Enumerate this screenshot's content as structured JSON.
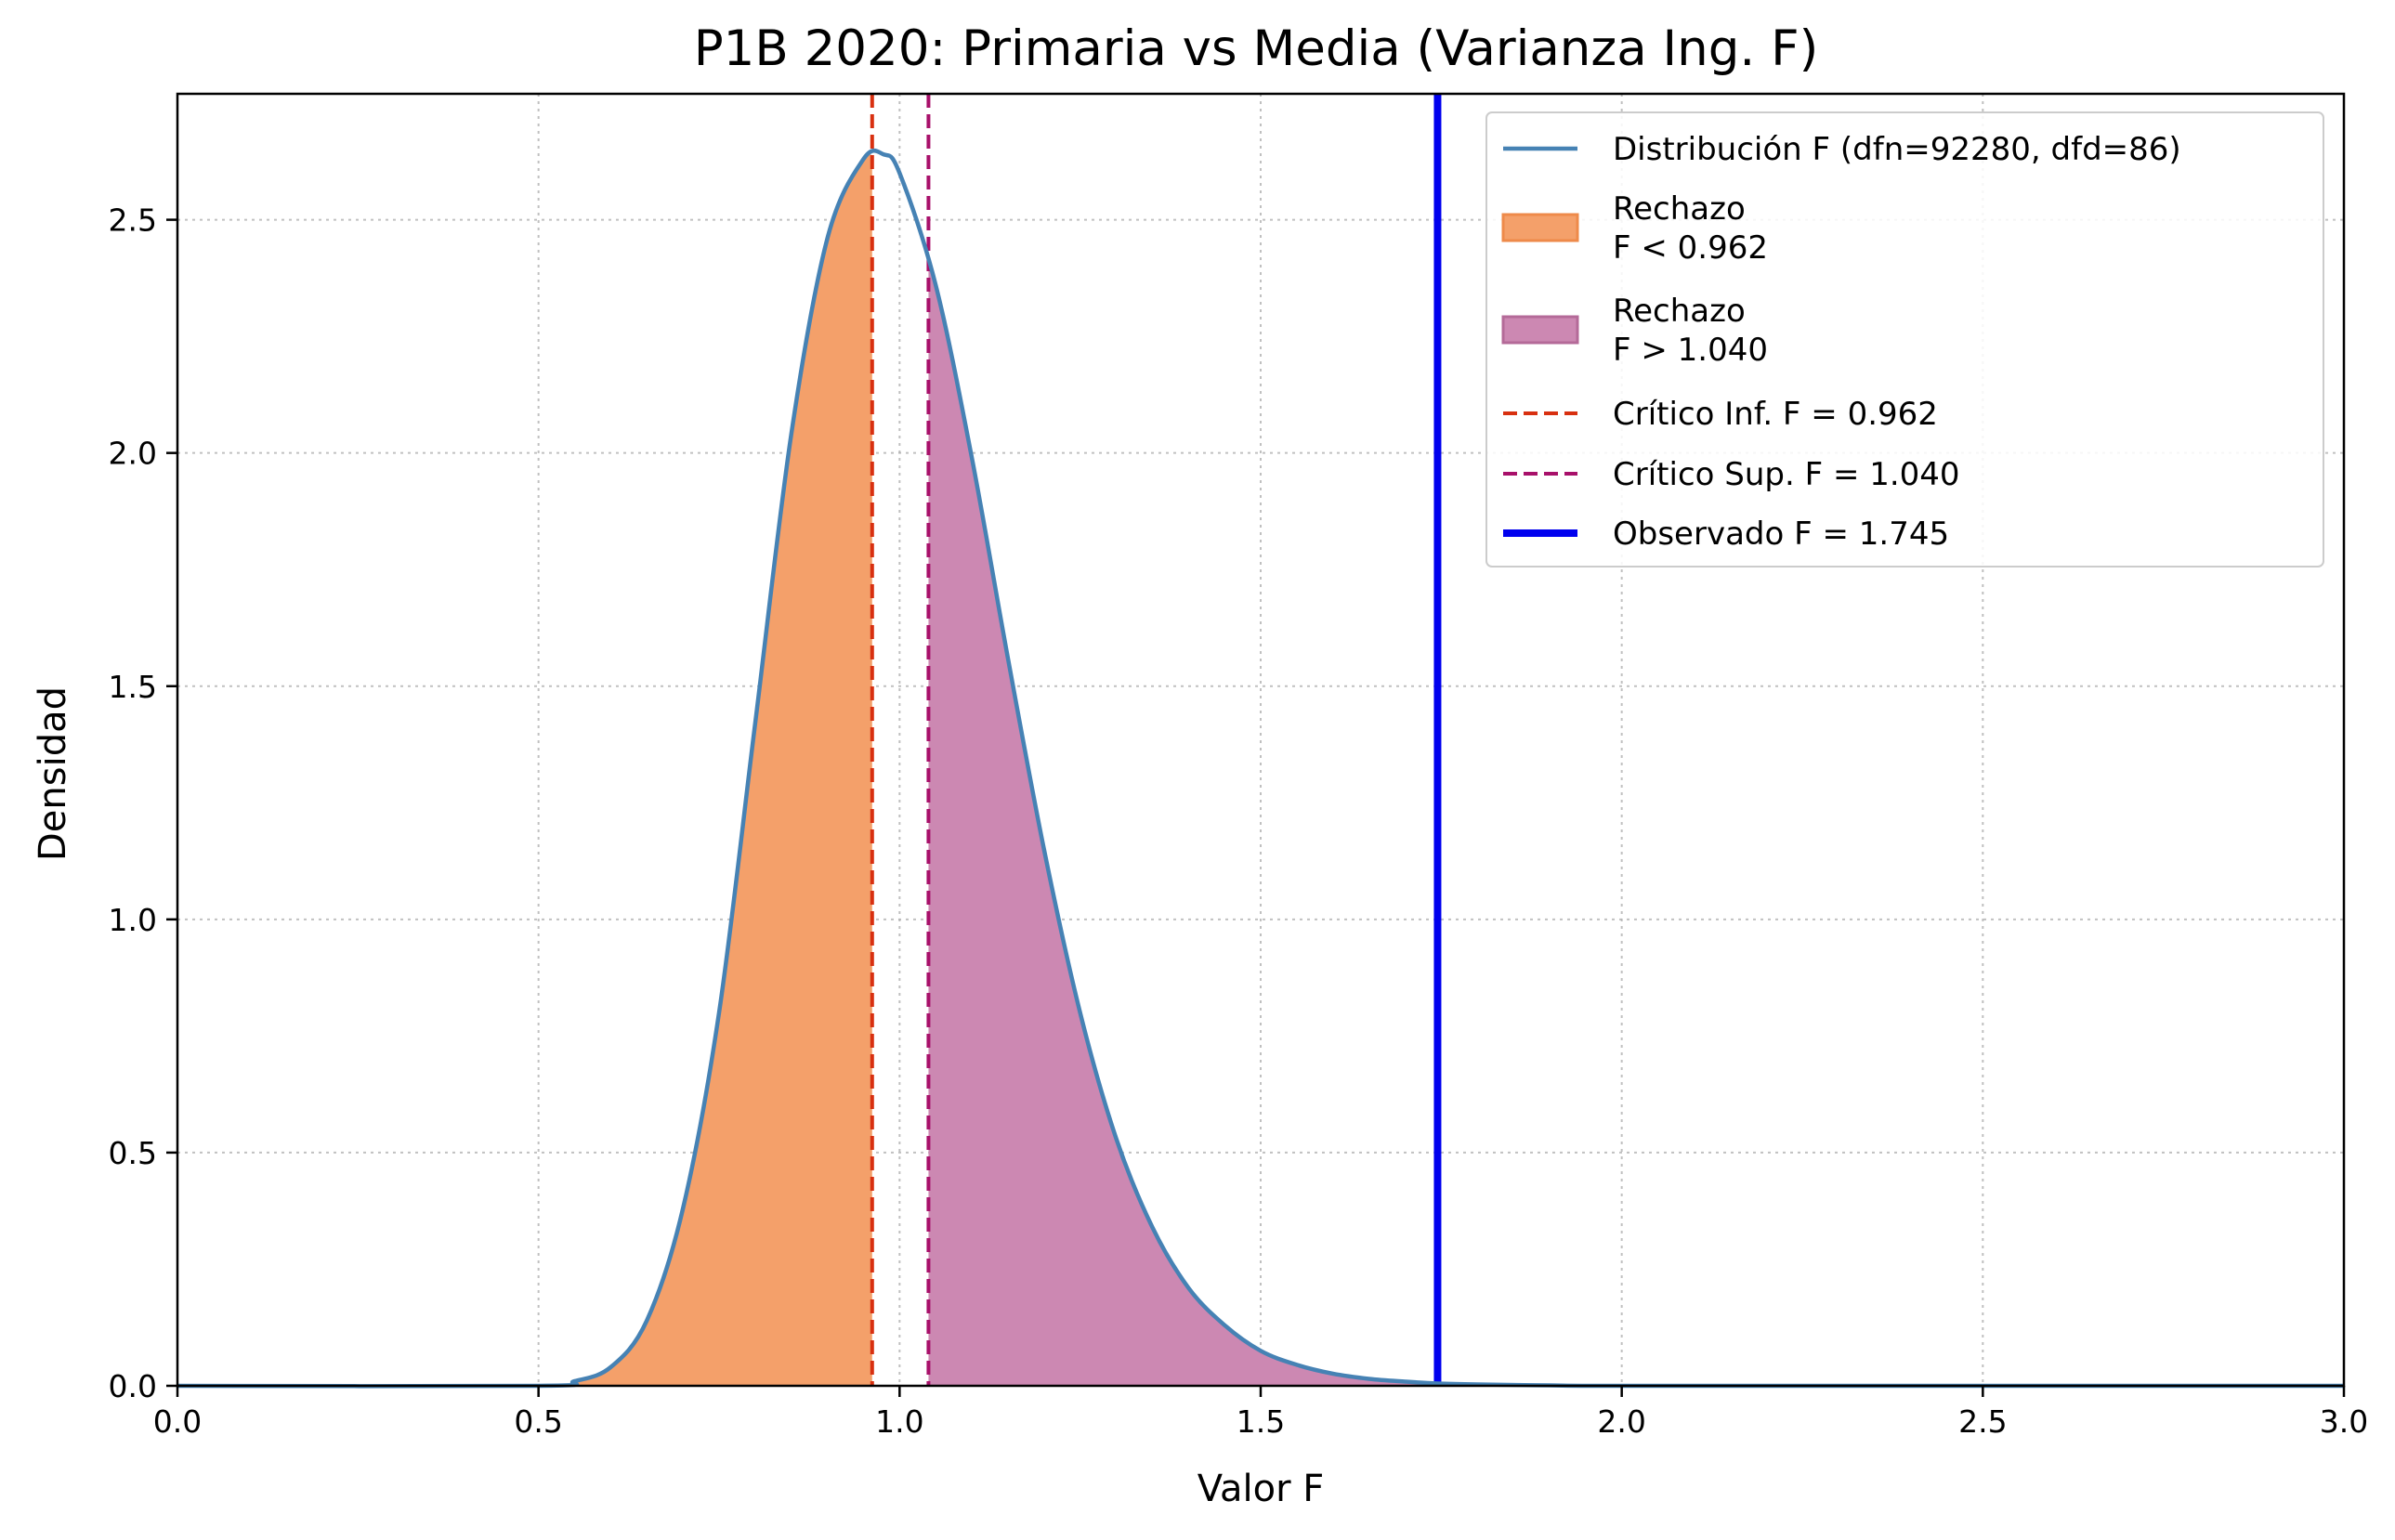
{
  "chart_data": {
    "type": "area",
    "title": "P1B 2020: Primaria vs Media (Varianza Ing. F)",
    "xlabel": "Valor F",
    "ylabel": "Densidad",
    "xlim": [
      0.0,
      3.0
    ],
    "ylim": [
      0.0,
      2.77
    ],
    "xticks": [
      0.0,
      0.5,
      1.0,
      1.5,
      2.0,
      2.5,
      3.0
    ],
    "xtick_labels": [
      "0.0",
      "0.5",
      "1.0",
      "1.5",
      "2.0",
      "2.5",
      "3.0"
    ],
    "yticks": [
      0.0,
      0.5,
      1.0,
      1.5,
      2.0,
      2.5
    ],
    "ytick_labels": [
      "0.0",
      "0.5",
      "1.0",
      "1.5",
      "2.0",
      "2.5"
    ],
    "grid": true,
    "legend_position": "top-right",
    "distribution": {
      "dfn": 92280,
      "dfd": 86
    },
    "series": [
      {
        "name": "Distribución F (dfn=92280, dfd=86)",
        "kind": "line",
        "color": "#4682b4",
        "x": [
          0.0,
          0.5,
          0.55,
          0.6,
          0.65,
          0.7,
          0.75,
          0.8,
          0.85,
          0.9,
          0.95,
          0.978,
          1.0,
          1.05,
          1.1,
          1.15,
          1.2,
          1.25,
          1.3,
          1.35,
          1.4,
          1.45,
          1.5,
          1.55,
          1.6,
          1.65,
          1.7,
          1.745,
          1.8,
          1.9,
          2.0,
          2.5,
          3.0
        ],
        "y": [
          0.0,
          0.0,
          0.01,
          0.04,
          0.14,
          0.38,
          0.8,
          1.42,
          2.04,
          2.46,
          2.63,
          2.64,
          2.6,
          2.36,
          1.99,
          1.56,
          1.15,
          0.8,
          0.53,
          0.34,
          0.21,
          0.13,
          0.075,
          0.045,
          0.026,
          0.015,
          0.009,
          0.005,
          0.003,
          0.001,
          0.0,
          0.0,
          0.0
        ]
      },
      {
        "name": "Rechazo\nF < 0.962",
        "kind": "fill",
        "color": "#f4a06a",
        "edge_color": "#ee8a4a",
        "range": [
          0.0,
          0.962
        ]
      },
      {
        "name": "Rechazo\nF > 1.040",
        "kind": "fill",
        "color": "#cc88b2",
        "edge_color": "#b46a98",
        "range": [
          1.04,
          3.0
        ]
      },
      {
        "name": "Crítico Inf. F = 0.962",
        "kind": "vline",
        "x": 0.962,
        "color": "#d83010",
        "style": "dashed"
      },
      {
        "name": "Crítico Sup. F = 1.040",
        "kind": "vline",
        "x": 1.04,
        "color": "#a8106a",
        "style": "dashed"
      },
      {
        "name": "Observado F = 1.745",
        "kind": "vline",
        "x": 1.745,
        "color": "#0000ee",
        "style": "solid"
      }
    ]
  }
}
